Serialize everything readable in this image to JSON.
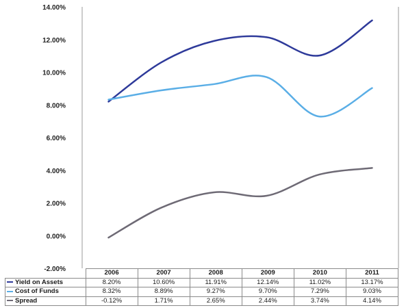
{
  "chart_data": {
    "type": "line",
    "title": "",
    "xlabel": "",
    "ylabel": "",
    "categories": [
      "2006",
      "2007",
      "2008",
      "2009",
      "2010",
      "2011"
    ],
    "ylim": [
      -2,
      14
    ],
    "yticks": [
      "14.00%",
      "12.00%",
      "10.00%",
      "8.00%",
      "6.00%",
      "4.00%",
      "2.00%",
      "0.00%",
      "-2.00%"
    ],
    "ytick_values": [
      14,
      12,
      10,
      8,
      6,
      4,
      2,
      0,
      -2
    ],
    "grid": false,
    "legend": "data-table",
    "series": [
      {
        "name": "Yield on Assets",
        "color": "#2e3a9a",
        "values": [
          8.2,
          10.6,
          11.91,
          12.14,
          11.02,
          13.17
        ],
        "labels": [
          "8.20%",
          "10.60%",
          "11.91%",
          "12.14%",
          "11.02%",
          "13.17%"
        ]
      },
      {
        "name": "Cost of Funds",
        "color": "#5aaee6",
        "values": [
          8.32,
          8.89,
          9.27,
          9.7,
          7.29,
          9.03
        ],
        "labels": [
          "8.32%",
          "8.89%",
          "9.27%",
          "9.70%",
          "7.29%",
          "9.03%"
        ]
      },
      {
        "name": "Spread",
        "color": "#6e6a75",
        "values": [
          -0.12,
          1.71,
          2.65,
          2.44,
          3.74,
          4.14
        ],
        "labels": [
          "-0.12%",
          "1.71%",
          "2.65%",
          "2.44%",
          "3.74%",
          "4.14%"
        ]
      }
    ]
  }
}
